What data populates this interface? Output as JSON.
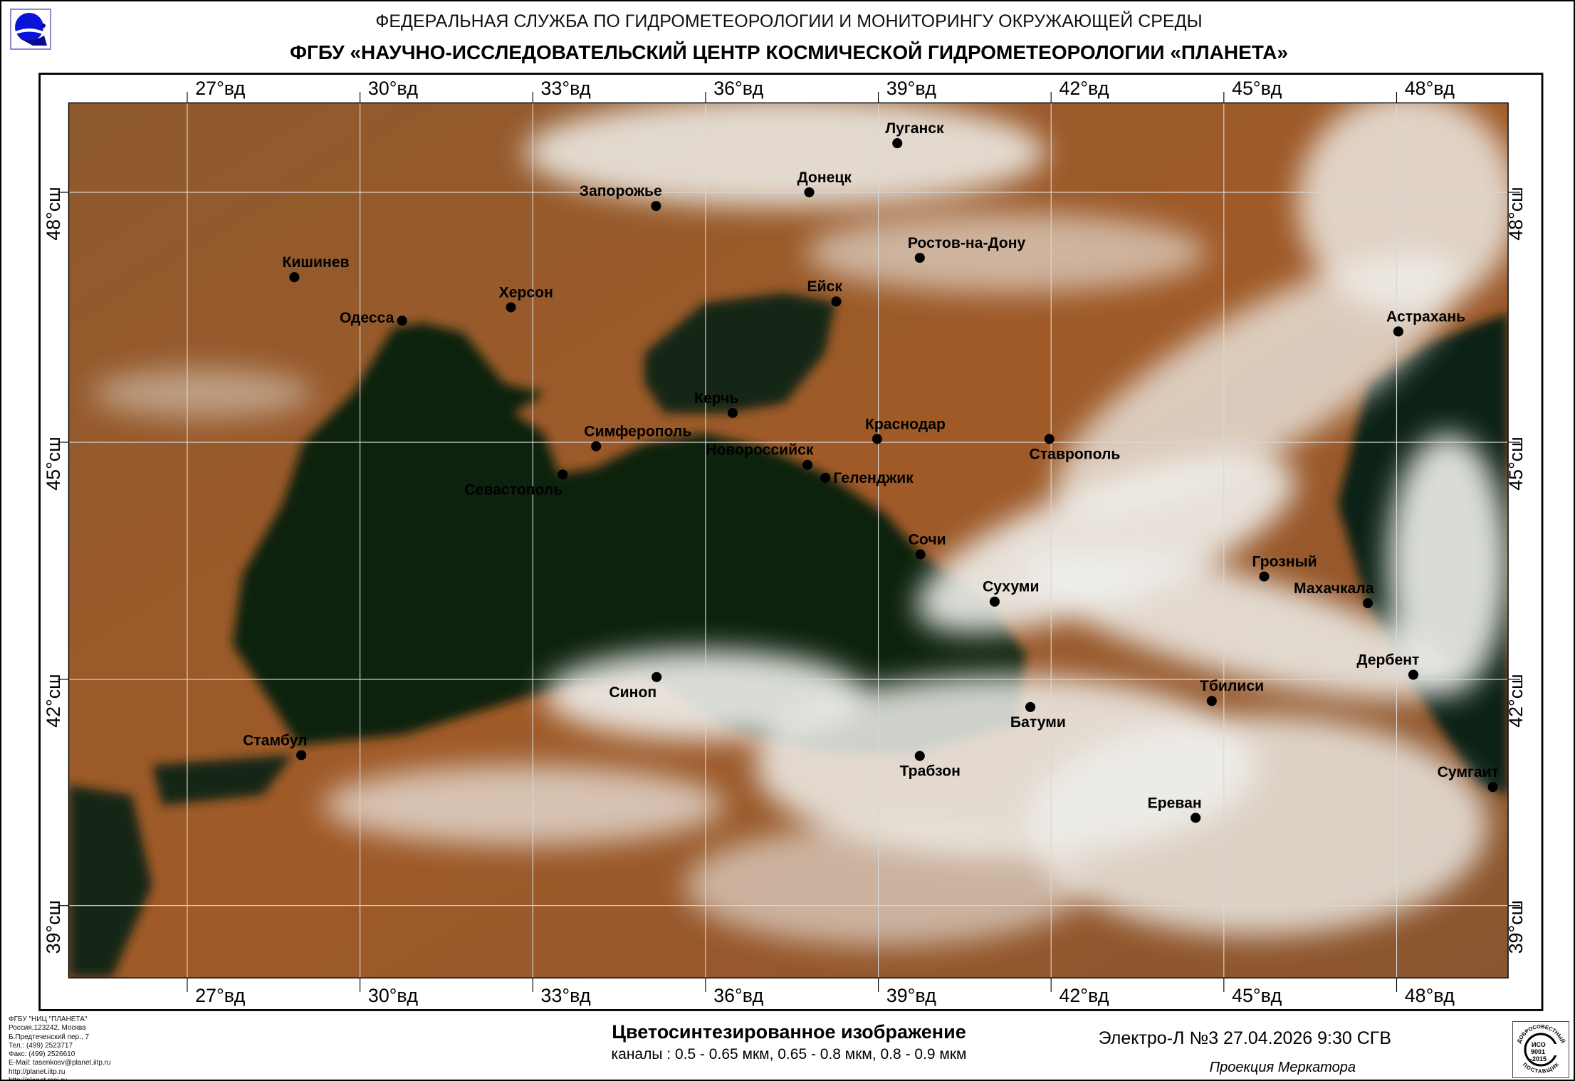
{
  "header": {
    "agency": "ФЕДЕРАЛЬНАЯ СЛУЖБА ПО ГИДРОМЕТЕОРОЛОГИИ И МОНИТОРИНГУ ОКРУЖАЮЩЕЙ СРЕДЫ",
    "center": "ФГБУ «НАУЧНО-ИССЛЕДОВАТЕЛЬСКИЙ ЦЕНТР КОСМИЧЕСКОЙ ГИДРОМЕТЕОРОЛОГИИ «ПЛАНЕТА»"
  },
  "map": {
    "projection": "Mercator",
    "lon_ticks": [
      {
        "value": 27,
        "label": "27°вд"
      },
      {
        "value": 30,
        "label": "30°вд"
      },
      {
        "value": 33,
        "label": "33°вд"
      },
      {
        "value": 36,
        "label": "36°вд"
      },
      {
        "value": 39,
        "label": "39°вд"
      },
      {
        "value": 42,
        "label": "42°вд"
      },
      {
        "value": 45,
        "label": "45°вд"
      },
      {
        "value": 48,
        "label": "48°вд"
      }
    ],
    "lat_ticks": [
      {
        "value": 48,
        "label": "48°сш"
      },
      {
        "value": 45,
        "label": "45°сш"
      },
      {
        "value": 42,
        "label": "42°сш"
      },
      {
        "value": 39,
        "label": "39°сш"
      }
    ],
    "cities": [
      {
        "name": "Луганск",
        "lat": 48.57,
        "lon": 39.33
      },
      {
        "name": "Донецк",
        "lat": 48.0,
        "lon": 37.8
      },
      {
        "name": "Запорожье",
        "lat": 47.84,
        "lon": 35.14
      },
      {
        "name": "Кишинев",
        "lat": 47.0,
        "lon": 28.86
      },
      {
        "name": "Ростов-на-Дону",
        "lat": 47.23,
        "lon": 39.72
      },
      {
        "name": "Херсон",
        "lat": 46.64,
        "lon": 32.62
      },
      {
        "name": "Одесса",
        "lat": 46.48,
        "lon": 30.73
      },
      {
        "name": "Ейск",
        "lat": 46.71,
        "lon": 38.27
      },
      {
        "name": "Астрахань",
        "lat": 46.35,
        "lon": 48.03
      },
      {
        "name": "Керчь",
        "lat": 45.36,
        "lon": 36.47
      },
      {
        "name": "Краснодар",
        "lat": 45.04,
        "lon": 38.98
      },
      {
        "name": "Симферополь",
        "lat": 44.95,
        "lon": 34.1
      },
      {
        "name": "Ставрополь",
        "lat": 45.04,
        "lon": 41.97
      },
      {
        "name": "Севастополь",
        "lat": 44.6,
        "lon": 33.52
      },
      {
        "name": "Новороссийск",
        "lat": 44.72,
        "lon": 37.77
      },
      {
        "name": "Геленджик",
        "lat": 44.56,
        "lon": 38.08
      },
      {
        "name": "Сочи",
        "lat": 43.6,
        "lon": 39.73
      },
      {
        "name": "Сухуми",
        "lat": 43.0,
        "lon": 41.02
      },
      {
        "name": "Грозный",
        "lat": 43.32,
        "lon": 45.7
      },
      {
        "name": "Махачкала",
        "lat": 42.98,
        "lon": 47.5
      },
      {
        "name": "Дербент",
        "lat": 42.06,
        "lon": 48.29
      },
      {
        "name": "Синоп",
        "lat": 42.03,
        "lon": 35.15
      },
      {
        "name": "Батуми",
        "lat": 41.64,
        "lon": 41.64
      },
      {
        "name": "Тбилиси",
        "lat": 41.72,
        "lon": 44.79
      },
      {
        "name": "Стамбул",
        "lat": 41.01,
        "lon": 28.98
      },
      {
        "name": "Трабзон",
        "lat": 41.0,
        "lon": 39.72
      },
      {
        "name": "Сумгаит",
        "lat": 40.59,
        "lon": 49.67
      },
      {
        "name": "Ереван",
        "lat": 40.18,
        "lon": 44.51
      }
    ],
    "colors": {
      "land": "#9a5a2c",
      "sea": "#0f2211",
      "cloud": "#f4f4f0",
      "grid": "#d8d8d8"
    }
  },
  "footer": {
    "contacts": [
      "ФГБУ \"НИЦ \"ПЛАНЕТА\"",
      "Россия,123242, Москва",
      "Б.Предтеченский пер., 7",
      "Тел.:  (499) 2523717",
      "Факс: (499) 2526610",
      "E-Mail: tasenkosv@planet.iitp.ru",
      "http://planet.iitp.ru",
      "http://planet.rssi.ru"
    ],
    "caption_title": "Цветосинтезированное изображение",
    "caption_channels": "каналы : 0.5 - 0.65 мкм, 0.65 - 0.8 мкм, 0.8 - 0.9 мкм",
    "satellite": "Электро-Л №3 27.04.2026  9:30 СГВ",
    "projection": "Проекция Меркатора",
    "iso_badge": {
      "top": "ДОБРОСОВЕСТНЫЙ",
      "main": "ИСО 9001 -2015",
      "bottom": "ПОСТАВЩИК"
    }
  }
}
